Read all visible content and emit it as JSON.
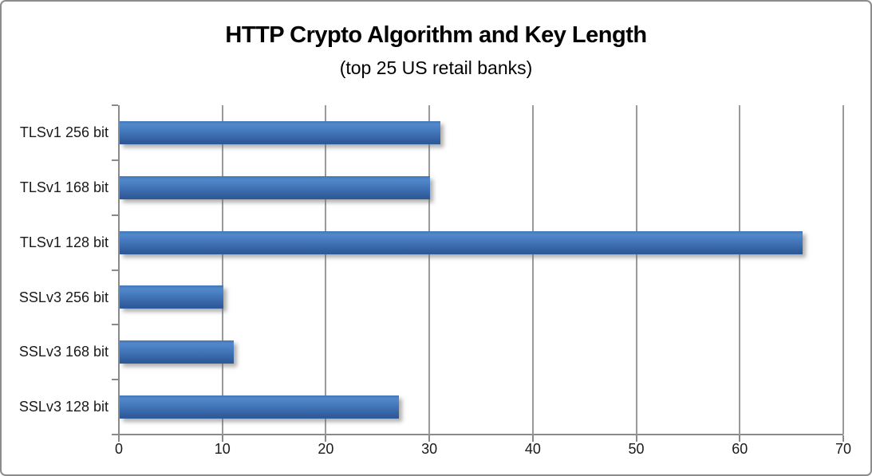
{
  "chart_data": {
    "type": "bar",
    "orientation": "horizontal",
    "title": "HTTP Crypto Algorithm and Key Length",
    "subtitle": "(top 25 US retail banks)",
    "categories": [
      "TLSv1 256 bit",
      "TLSv1 168 bit",
      "TLSv1 128 bit",
      "SSLv3 256 bit",
      "SSLv3 168 bit",
      "SSLv3 128 bit"
    ],
    "values": [
      31,
      30,
      66,
      10,
      11,
      27
    ],
    "xlabel": "",
    "ylabel": "",
    "xlim": [
      0,
      70
    ],
    "xticks": [
      0,
      10,
      20,
      30,
      40,
      50,
      60,
      70
    ],
    "grid": "vertical-only",
    "legend": "none",
    "bar_color": "#3E6FB0",
    "gridline_color": "#9A9A9A",
    "axis_color": "#8A8A8A",
    "frame_border_color": "#8C8C8C",
    "background_color": "#FFFFFF"
  }
}
